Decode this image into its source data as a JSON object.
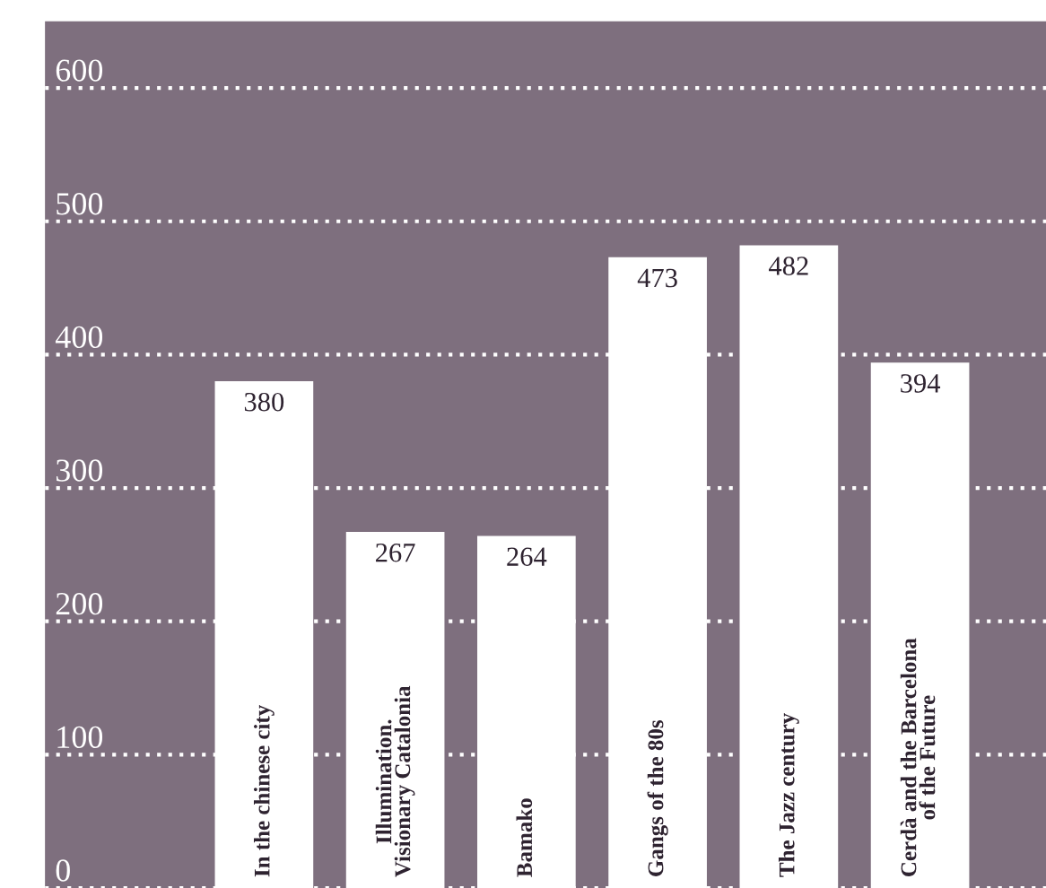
{
  "chart_data": {
    "type": "bar",
    "categories": [
      "In the chinese city",
      "Illumination.\nVisionary Catalonia",
      "Bamako",
      "Gangs of the 80s",
      "The Jazz century",
      "Cerdà and the Barcelona\nof the Future"
    ],
    "values": [
      380,
      267,
      264,
      473,
      482,
      394
    ],
    "color": "#ffffff",
    "ylim": [
      0,
      650
    ],
    "yticks": [
      0,
      100,
      200,
      300,
      400,
      500,
      600
    ],
    "grid": "y",
    "data_labels": true,
    "tick_labels": "y",
    "legend": false
  }
}
